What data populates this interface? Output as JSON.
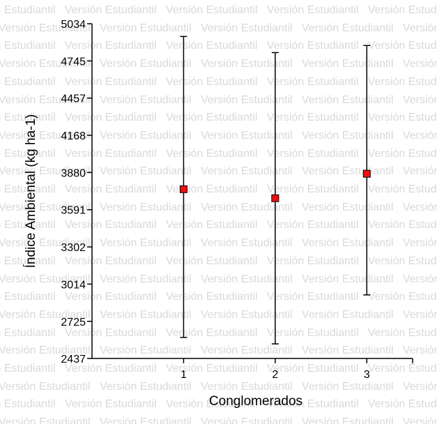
{
  "watermark": {
    "text": "Versión Estudiantil",
    "color": "#d9d9d9"
  },
  "chart_data": {
    "type": "scatter",
    "title": "",
    "xlabel": "Conglomerados",
    "ylabel": "Índice Ambiental (kg ha-1)",
    "categories": [
      "1",
      "2",
      "3"
    ],
    "series": [
      {
        "values": [
          3750,
          3680,
          3870
        ],
        "lower": [
          2600,
          2550,
          2930
        ],
        "upper": [
          4935,
          4810,
          4865
        ],
        "marker": "square",
        "color": "#ee1111"
      }
    ],
    "yticks": [
      "2437",
      "2725",
      "3014",
      "3302",
      "3591",
      "3880",
      "4168",
      "4457",
      "4745",
      "5034"
    ],
    "ylim": [
      2437,
      5034
    ],
    "xlim": [
      0,
      3.5
    ],
    "grid": false,
    "legend": "none"
  }
}
